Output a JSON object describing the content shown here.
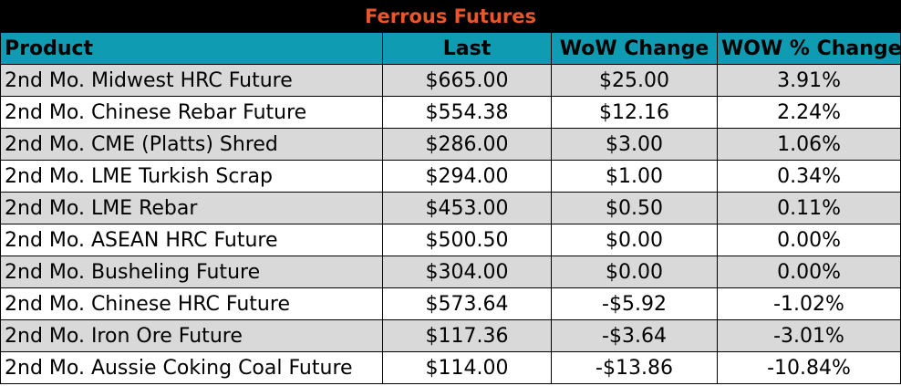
{
  "title": "Ferrous Futures",
  "columns": {
    "product": "Product",
    "last": "Last",
    "wow_change": "WoW Change",
    "wow_pct_change": "WOW % Change"
  },
  "rows": [
    {
      "product": "2nd Mo. Midwest HRC Future",
      "last": "$665.00",
      "wow_change": "$25.00",
      "wow_pct_change": "3.91%"
    },
    {
      "product": "2nd Mo. Chinese Rebar Future",
      "last": "$554.38",
      "wow_change": "$12.16",
      "wow_pct_change": "2.24%"
    },
    {
      "product": "2nd Mo. CME (Platts) Shred",
      "last": "$286.00",
      "wow_change": "$3.00",
      "wow_pct_change": "1.06%"
    },
    {
      "product": "2nd Mo. LME Turkish Scrap",
      "last": "$294.00",
      "wow_change": "$1.00",
      "wow_pct_change": "0.34%"
    },
    {
      "product": "2nd Mo. LME Rebar",
      "last": "$453.00",
      "wow_change": "$0.50",
      "wow_pct_change": "0.11%"
    },
    {
      "product": "2nd Mo. ASEAN HRC Future",
      "last": "$500.50",
      "wow_change": "$0.00",
      "wow_pct_change": "0.00%"
    },
    {
      "product": "2nd Mo. Busheling Future",
      "last": "$304.00",
      "wow_change": "$0.00",
      "wow_pct_change": "0.00%"
    },
    {
      "product": "2nd Mo. Chinese HRC Future",
      "last": "$573.64",
      "wow_change": "-$5.92",
      "wow_pct_change": "-1.02%"
    },
    {
      "product": "2nd Mo. Iron Ore Future",
      "last": "$117.36",
      "wow_change": "-$3.64",
      "wow_pct_change": "-3.01%"
    },
    {
      "product": "2nd Mo. Aussie Coking Coal Future",
      "last": "$114.00",
      "wow_change": "-$13.86",
      "wow_pct_change": "-10.84%"
    }
  ],
  "colors": {
    "title_background": "#000000",
    "title_text": "#e8562a",
    "header_background": "#0f9bb2",
    "stripe_background": "#d9d9d9"
  }
}
